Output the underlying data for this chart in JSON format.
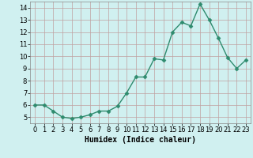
{
  "x": [
    0,
    1,
    2,
    3,
    4,
    5,
    6,
    7,
    8,
    9,
    10,
    11,
    12,
    13,
    14,
    15,
    16,
    17,
    18,
    19,
    20,
    21,
    22,
    23
  ],
  "y": [
    6.0,
    6.0,
    5.5,
    5.0,
    4.9,
    5.0,
    5.2,
    5.5,
    5.5,
    5.9,
    7.0,
    8.3,
    8.3,
    9.8,
    9.7,
    12.0,
    12.8,
    12.5,
    14.3,
    13.0,
    11.5,
    9.9,
    9.0,
    9.7
  ],
  "line_color": "#2e8b6e",
  "marker": "D",
  "marker_size": 2.5,
  "bg_color": "#d0f0f0",
  "grid_color": "#c0a0a0",
  "xlabel": "Humidex (Indice chaleur)",
  "xlim": [
    -0.5,
    23.5
  ],
  "ylim": [
    4.5,
    14.5
  ],
  "yticks": [
    5,
    6,
    7,
    8,
    9,
    10,
    11,
    12,
    13,
    14
  ],
  "xticks": [
    0,
    1,
    2,
    3,
    4,
    5,
    6,
    7,
    8,
    9,
    10,
    11,
    12,
    13,
    14,
    15,
    16,
    17,
    18,
    19,
    20,
    21,
    22,
    23
  ],
  "line_width": 1.0,
  "tick_fontsize": 6.0,
  "xlabel_fontsize": 7.0
}
